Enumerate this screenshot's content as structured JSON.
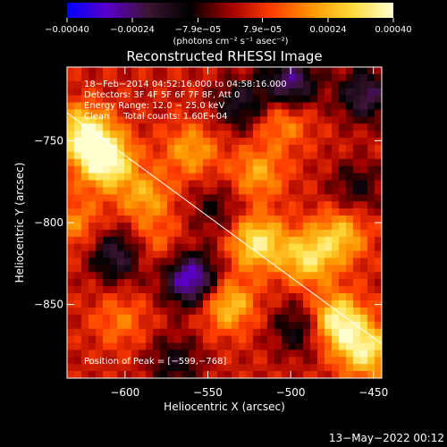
{
  "chart_data": {
    "type": "heatmap",
    "title": "Reconstructed RHESSI Image",
    "xlabel": "Heliocentric X (arcsec)",
    "ylabel": "Heliocentric Y (arcsec)",
    "xlim": [
      -635,
      -445
    ],
    "ylim": [
      -895,
      -705
    ],
    "x_ticks": [
      {
        "value": -600,
        "label": "−600"
      },
      {
        "value": -550,
        "label": "−550"
      },
      {
        "value": -500,
        "label": "−500"
      },
      {
        "value": -450,
        "label": "−450"
      }
    ],
    "y_ticks": [
      {
        "value": -750,
        "label": "−750"
      },
      {
        "value": -800,
        "label": "−800"
      },
      {
        "value": -850,
        "label": "−850"
      }
    ],
    "colorbar": {
      "range": [
        -0.0004,
        0.0004
      ],
      "tick_values": [
        -0.0004,
        -0.00024,
        -7.9e-05,
        7.9e-05,
        0.00024,
        0.0004
      ],
      "tick_labels": [
        "−0.00040",
        "−0.00024",
        "−7.9e−05",
        "7.9e−05",
        "0.00024",
        "0.00040"
      ],
      "unit_label": "(photons cm⁻² s⁻¹ asec⁻²)",
      "colors": [
        "#0000ff",
        "#5a00c8",
        "#3c1432",
        "#000000",
        "#a00000",
        "#ff3c00",
        "#ff9600",
        "#ffdc3c",
        "#ffffd0"
      ]
    },
    "annotations": {
      "time_range": "18−Feb−2014 04:52:16.000 to 04:58:16.000",
      "detectors": "Detectors: 3F 4F 5F 6F 7F 8F, Att 0",
      "energy": "Energy Range: 12.0 − 25.0 keV",
      "clean_counts": "Clean     Total counts: 1.60E+04",
      "peak": "Position of Peak = [−599,−768]"
    },
    "limb_line": [
      {
        "x": -635,
        "y": -733
      },
      {
        "x": -445,
        "y": -874
      }
    ],
    "hot_regions": [
      {
        "x": -612,
        "y": -762,
        "value": 0.0004
      },
      {
        "x": -625,
        "y": -745,
        "value": 0.00032
      },
      {
        "x": -560,
        "y": -756,
        "value": 0.00018
      },
      {
        "x": -588,
        "y": -784,
        "value": 0.00018
      },
      {
        "x": -520,
        "y": -812,
        "value": 0.0003
      },
      {
        "x": -490,
        "y": -822,
        "value": 0.00026
      },
      {
        "x": -470,
        "y": -808,
        "value": 0.00022
      },
      {
        "x": -472,
        "y": -860,
        "value": 0.00034
      },
      {
        "x": -455,
        "y": -878,
        "value": 0.0003
      },
      {
        "x": -538,
        "y": -850,
        "value": 0.00024
      },
      {
        "x": -520,
        "y": -770,
        "value": 0.00018
      },
      {
        "x": -505,
        "y": -738,
        "value": 0.00016
      },
      {
        "x": -630,
        "y": -800,
        "value": 0.00014
      },
      {
        "x": -603,
        "y": -860,
        "value": 0.00012
      },
      {
        "x": -582,
        "y": -812,
        "value": 0.0001
      }
    ],
    "cold_regions": [
      {
        "x": -560,
        "y": -835,
        "value": -0.00038
      },
      {
        "x": -500,
        "y": -715,
        "value": -0.0003
      },
      {
        "x": -455,
        "y": -722,
        "value": -0.00026
      },
      {
        "x": -605,
        "y": -820,
        "value": -0.00024
      },
      {
        "x": -530,
        "y": -728,
        "value": -0.0002
      },
      {
        "x": -495,
        "y": -865,
        "value": -0.00018
      },
      {
        "x": -570,
        "y": -885,
        "value": -0.00016
      },
      {
        "x": -460,
        "y": -778,
        "value": -0.00014
      },
      {
        "x": -545,
        "y": -792,
        "value": -0.00012
      }
    ]
  },
  "footer": {
    "timestamp": "13−May−2022 00:12"
  }
}
